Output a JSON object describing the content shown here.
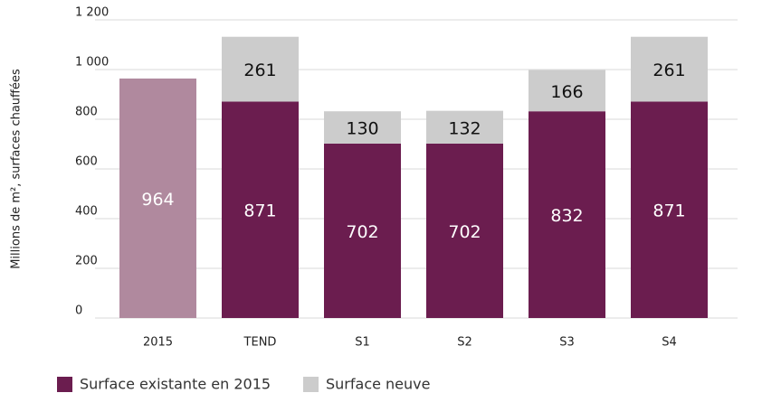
{
  "chart_data": {
    "type": "stacked-bar",
    "y_label": "Millions de m², surfaces chauffées",
    "categories": [
      "2015",
      "TEND",
      "S1",
      "S2",
      "S3",
      "S4"
    ],
    "series": [
      {
        "name": "Surface existante en 2015",
        "color": "#6b1d4f",
        "colors": [
          "#b0899e",
          "#6b1d4f",
          "#6b1d4f",
          "#6b1d4f",
          "#6b1d4f",
          "#6b1d4f"
        ],
        "label_color": "#ffffff",
        "values": [
          964,
          871,
          702,
          702,
          832,
          871
        ]
      },
      {
        "name": "Surface neuve",
        "color": "#cccccc",
        "label_color": "#111111",
        "values": [
          null,
          261,
          130,
          132,
          166,
          261
        ]
      }
    ],
    "ylim": [
      0,
      1200
    ],
    "yticks": [
      0,
      200,
      400,
      600,
      800,
      {
        "value": 1000,
        "label": "1 000"
      },
      {
        "value": 1200,
        "label": "1 200"
      }
    ],
    "grid": true
  }
}
